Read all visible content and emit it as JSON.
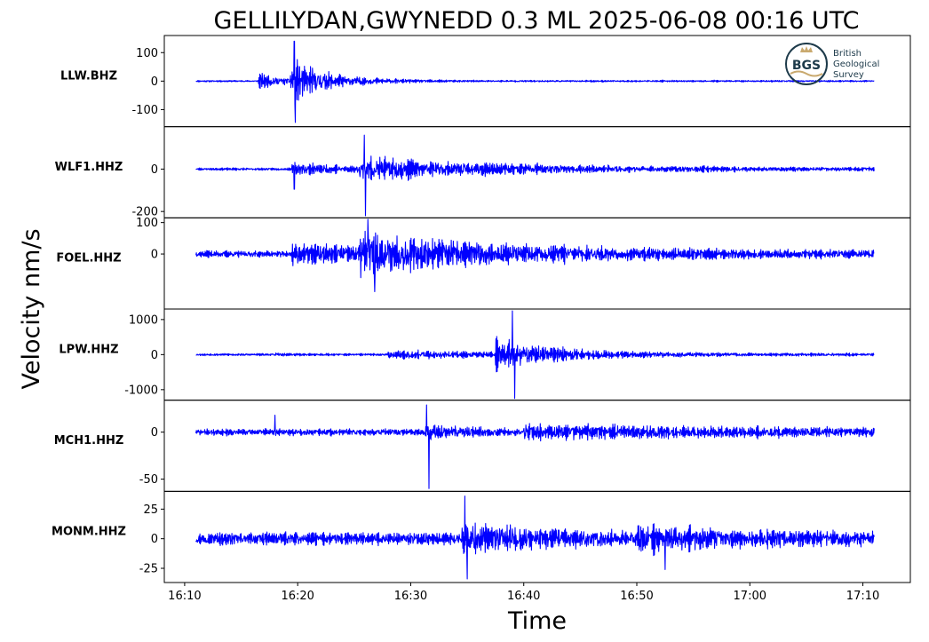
{
  "chart_data": {
    "type": "line",
    "title": "GELLILYDAN,GWYNEDD 0.3 ML   2025-06-08 00:16 UTC",
    "xlabel": "Time",
    "ylabel": "Velocity nm/s",
    "x_ticks": [
      "16:10",
      "16:20",
      "16:30",
      "16:40",
      "16:50",
      "17:00",
      "17:10"
    ],
    "x_range_minutes": [
      8.2,
      74.2
    ],
    "trace_start_minutes": 11,
    "trace_end_minutes": 71,
    "line_color": "#0000ff",
    "series": [
      {
        "name": "LLW.BHZ",
        "ylim": [
          -160,
          160
        ],
        "yticks": [
          100,
          0,
          -100
        ],
        "ytick_labels": [
          "100",
          "0",
          "-100"
        ],
        "noise": 4,
        "seed": 11,
        "bursts": [
          {
            "t": 16.5,
            "amp": 35,
            "decay": 3.0
          },
          {
            "t": 19.3,
            "amp": 95,
            "decay": 3.5
          }
        ],
        "spikes": [
          {
            "t": 19.7,
            "v": 140
          },
          {
            "t": 19.8,
            "v": -145
          }
        ]
      },
      {
        "name": "WLF1.HHZ",
        "ylim": [
          -230,
          200
        ],
        "yticks": [
          0,
          -200
        ],
        "ytick_labels": [
          "0",
          "-200"
        ],
        "noise": 8,
        "seed": 23,
        "bursts": [
          {
            "t": 19.5,
            "amp": 35,
            "decay": 8
          },
          {
            "t": 25.5,
            "amp": 55,
            "decay": 18
          }
        ],
        "spikes": [
          {
            "t": 19.7,
            "v": -95
          },
          {
            "t": 25.9,
            "v": 160
          },
          {
            "t": 26.0,
            "v": -220
          }
        ]
      },
      {
        "name": "FOEL.HHZ",
        "ylim": [
          -175,
          115
        ],
        "yticks": [
          100,
          0
        ],
        "ytick_labels": [
          "100",
          "0"
        ],
        "noise": 14,
        "seed": 37,
        "bursts": [
          {
            "t": 19.5,
            "amp": 35,
            "decay": 25
          },
          {
            "t": 25.5,
            "amp": 65,
            "decay": 10
          }
        ],
        "spikes": [
          {
            "t": 26.2,
            "v": 110
          },
          {
            "t": 26.8,
            "v": -120
          }
        ]
      },
      {
        "name": "LPW.HHZ",
        "ylim": [
          -1300,
          1300
        ],
        "yticks": [
          1000,
          0,
          -1000
        ],
        "ytick_labels": [
          "1000",
          "0",
          "-1000"
        ],
        "noise": 45,
        "seed": 53,
        "bursts": [
          {
            "t": 18.0,
            "amp": 40,
            "decay": 1.0
          },
          {
            "t": 28.0,
            "amp": 140,
            "decay": 15
          },
          {
            "t": 37.5,
            "amp": 480,
            "decay": 6
          }
        ],
        "spikes": [
          {
            "t": 39.0,
            "v": 1250
          },
          {
            "t": 39.2,
            "v": -1250
          }
        ]
      },
      {
        "name": "MCH1.HHZ",
        "ylim": [
          -63,
          34
        ],
        "yticks": [
          0,
          -50
        ],
        "ytick_labels": [
          "0",
          "-50"
        ],
        "noise": 5,
        "seed": 71,
        "bursts": [
          {
            "t": 31.2,
            "amp": 9,
            "decay": 3.5
          },
          {
            "t": 40.0,
            "amp": 8,
            "decay": 20
          }
        ],
        "spikes": [
          {
            "t": 31.4,
            "v": 29
          },
          {
            "t": 31.6,
            "v": -60
          },
          {
            "t": 18.0,
            "v": 18
          }
        ]
      },
      {
        "name": "MONM.HHZ",
        "ylim": [
          -37,
          40
        ],
        "yticks": [
          25,
          0,
          -25
        ],
        "ytick_labels": [
          "25",
          "0",
          "-25"
        ],
        "noise": 7,
        "seed": 97,
        "bursts": [
          {
            "t": 34.5,
            "amp": 15,
            "decay": 8
          },
          {
            "t": 50.0,
            "amp": 8,
            "decay": 15
          }
        ],
        "spikes": [
          {
            "t": 34.8,
            "v": 36
          },
          {
            "t": 35.0,
            "v": -34
          },
          {
            "t": 52.5,
            "v": -26
          }
        ]
      }
    ]
  },
  "logo": {
    "abbr": "BGS",
    "line1": "British",
    "line2": "Geological",
    "line3": "Survey",
    "color_dark": "#1d3a4a",
    "color_gold": "#c9a96e"
  }
}
